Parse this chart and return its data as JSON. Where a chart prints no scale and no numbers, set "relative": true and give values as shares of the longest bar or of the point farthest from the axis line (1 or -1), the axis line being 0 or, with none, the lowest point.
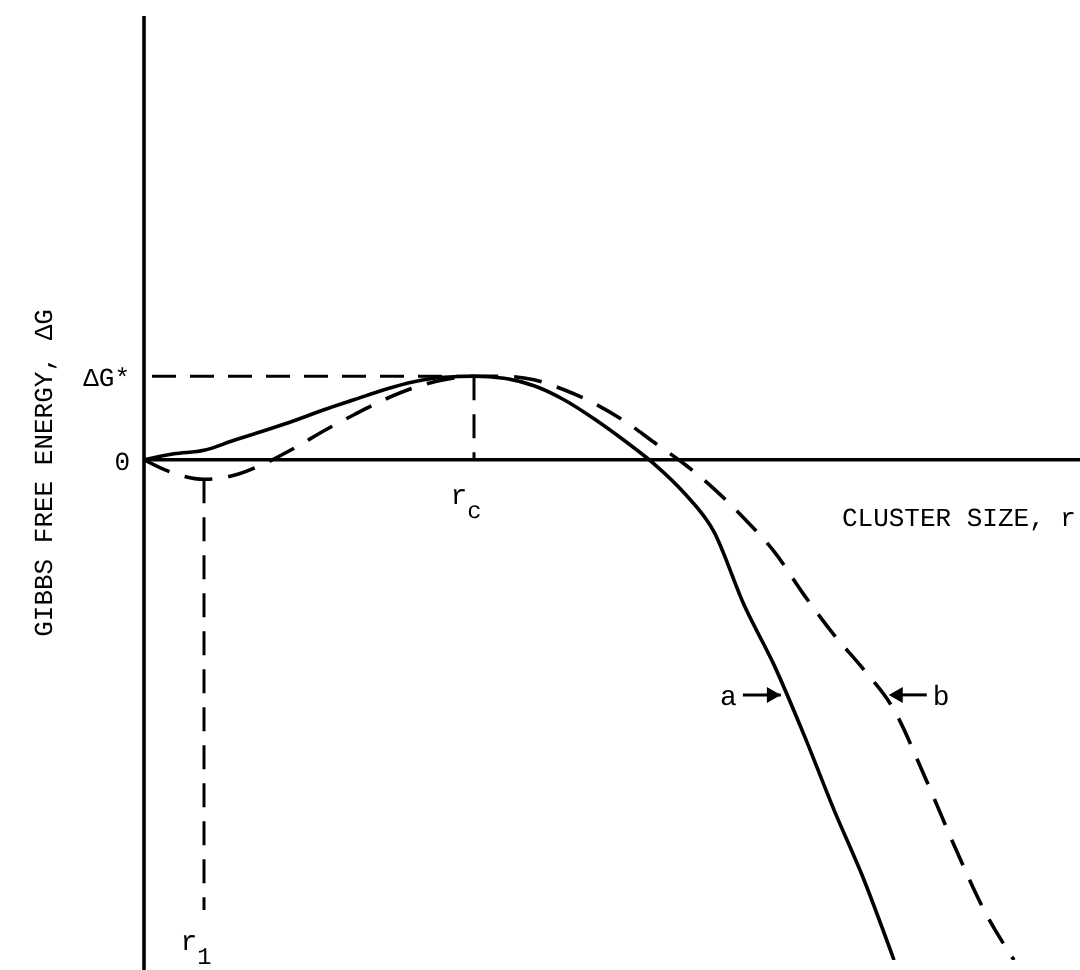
{
  "chart_data": {
    "type": "line",
    "relative": true,
    "xlabel": "CLUSTER SIZE, r",
    "ylabel": "GIBBS FREE ENERGY, ΔG",
    "marker": "none",
    "categories": [
      null,
      null,
      null,
      null,
      null,
      null,
      null,
      null,
      null,
      null,
      null,
      null,
      null,
      null,
      null,
      null,
      null,
      null,
      null,
      null,
      null,
      null,
      null,
      null,
      null,
      null,
      null,
      null,
      null,
      null
    ],
    "series": [
      {
        "name": "a",
        "color": "#000000",
        "line_style": "solid",
        "values": [
          0,
          0.012,
          0.019,
          0.039,
          0.058,
          0.078,
          0.1,
          0.12,
          0.14,
          0.156,
          0.165,
          0.167,
          0.163,
          0.148,
          0.12,
          0.082,
          0.039,
          -0.008,
          -0.066,
          -0.144,
          -0.29,
          -0.41,
          -0.55,
          -0.7,
          -0.84,
          -1,
          null,
          null,
          null,
          null
        ]
      },
      {
        "name": "b",
        "color": "#000000",
        "line_style": "dashed",
        "values": [
          0,
          -0.027,
          -0.039,
          -0.031,
          -0.008,
          0.023,
          0.058,
          0.09,
          0.12,
          0.144,
          0.16,
          0.167,
          0.167,
          0.16,
          0.14,
          0.113,
          0.078,
          0.035,
          -0.008,
          -0.058,
          -0.117,
          -0.183,
          -0.27,
          -0.35,
          -0.42,
          -0.5,
          -0.63,
          -0.77,
          -0.9,
          -1
        ]
      }
    ],
    "annotations": [
      "0",
      "ΔG*",
      "r$_{c}$",
      "r$_{1}$"
    ]
  }
}
